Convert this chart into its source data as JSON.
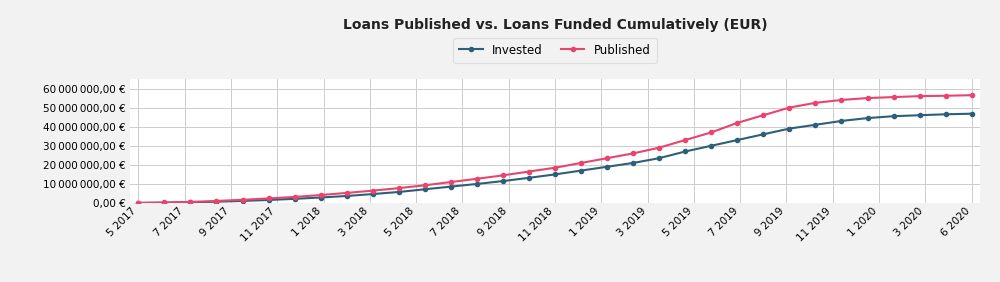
{
  "title": "Loans Published vs. Loans Funded Cumulatively (EUR)",
  "background_color": "#f2f2f2",
  "plot_background_color": "#ffffff",
  "grid_color": "#cccccc",
  "invested_color": "#2e5f7a",
  "published_color": "#e8456e",
  "x_labels": [
    "5 2017",
    "7 2017",
    "9 2017",
    "11 2017",
    "1 2018",
    "3 2018",
    "5 2018",
    "7 2018",
    "9 2018",
    "11 2018",
    "1 2019",
    "3 2019",
    "5 2019",
    "7 2019",
    "9 2019",
    "11 2019",
    "1 2020",
    "3 2020",
    "6 2020"
  ],
  "invested_values": [
    50000,
    150000,
    350000,
    700000,
    1100000,
    1600000,
    2200000,
    2900000,
    3700000,
    4700000,
    5800000,
    7200000,
    8600000,
    10000000,
    11500000,
    13200000,
    15000000,
    17000000,
    19000000,
    21000000,
    23500000,
    27000000,
    30000000,
    33000000,
    36000000,
    39000000,
    41000000,
    43000000,
    44500000,
    45500000,
    46000000,
    46500000,
    46800000
  ],
  "published_values": [
    100000,
    300000,
    600000,
    1100000,
    1700000,
    2400000,
    3200000,
    4200000,
    5300000,
    6500000,
    7800000,
    9300000,
    11000000,
    12700000,
    14500000,
    16500000,
    18500000,
    21000000,
    23500000,
    26000000,
    29000000,
    33000000,
    37000000,
    42000000,
    46000000,
    50000000,
    52500000,
    54000000,
    55000000,
    55500000,
    56000000,
    56200000,
    56500000
  ],
  "ytick_values": [
    0,
    10000000,
    20000000,
    30000000,
    40000000,
    50000000,
    60000000
  ],
  "ylim": [
    0,
    65000000
  ],
  "legend_invested": "Invested",
  "legend_published": "Published"
}
